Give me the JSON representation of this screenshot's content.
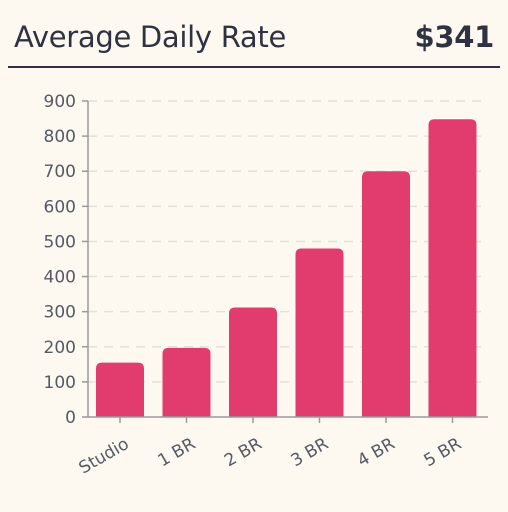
{
  "header": {
    "title": "Average Daily Rate",
    "kpi_value": "$341"
  },
  "colors": {
    "bar": "#e23b6d",
    "grid": "#e4e1da",
    "axis": "#9a9a9a",
    "text": "#2f3242"
  },
  "chart_data": {
    "type": "bar",
    "categories": [
      "Studio",
      "1 BR",
      "2 BR",
      "3 BR",
      "4 BR",
      "5 BR"
    ],
    "values": [
      155,
      197,
      312,
      480,
      700,
      848
    ],
    "xlabel": "",
    "ylabel": "",
    "ylim": [
      0,
      900
    ],
    "yticks": [
      "0",
      "100",
      "200",
      "300",
      "400",
      "500",
      "600",
      "700",
      "800",
      "900"
    ],
    "grid": true,
    "legend": "none"
  }
}
